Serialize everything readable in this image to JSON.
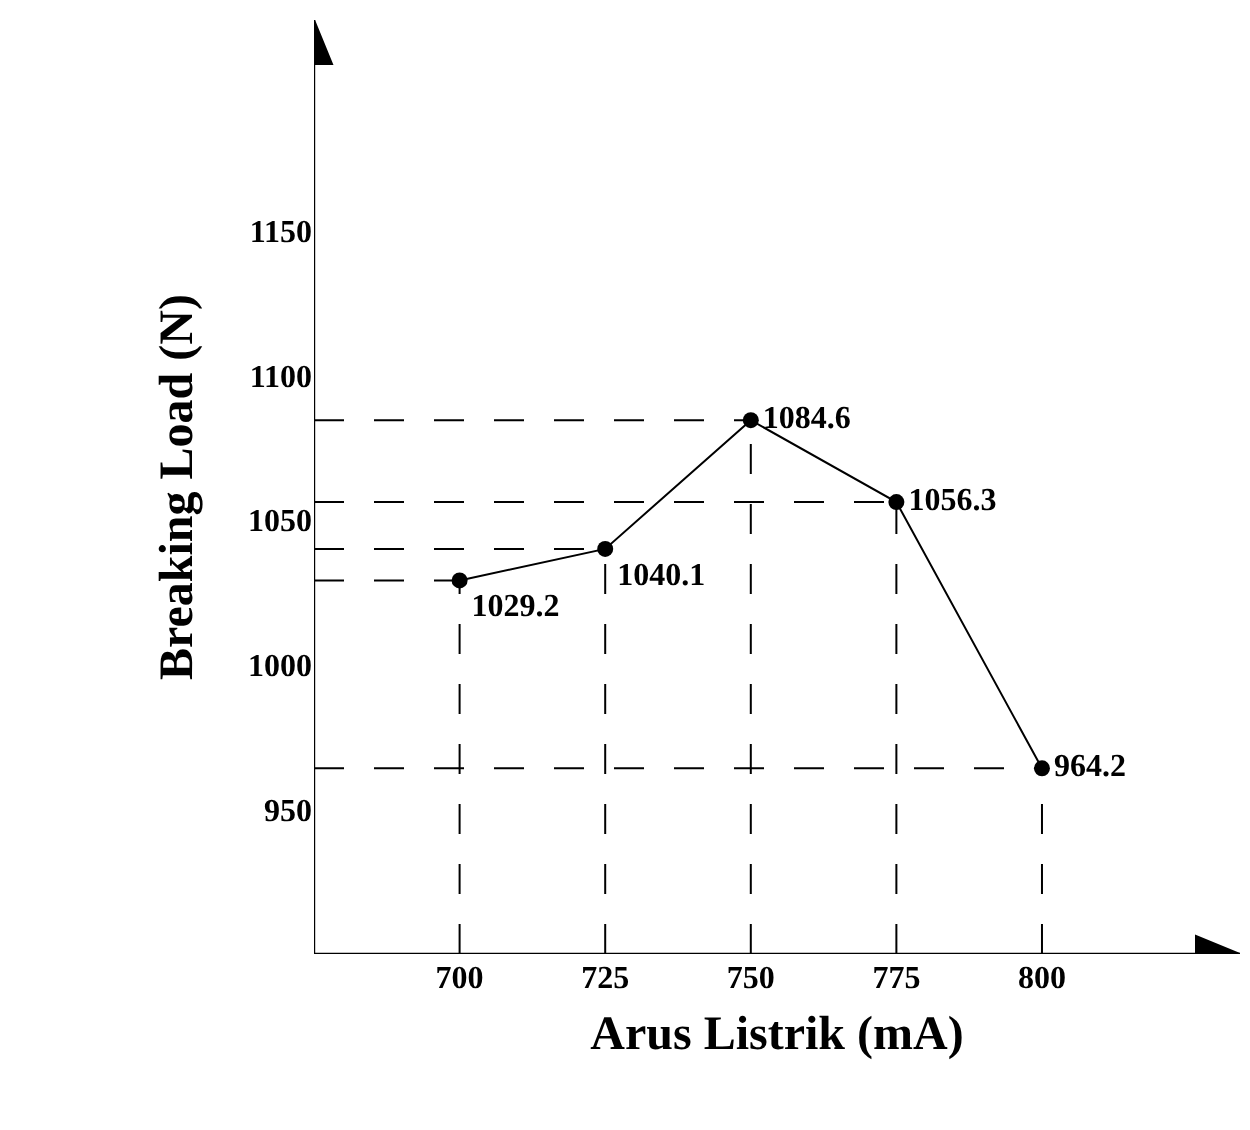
{
  "chart_data": {
    "type": "line",
    "xlabel": "Arus Listrik (mA)",
    "ylabel": "Breaking Load (N)",
    "x": [
      700,
      725,
      750,
      775,
      800
    ],
    "values": [
      1029.2,
      1040.1,
      1084.6,
      1056.3,
      964.2
    ],
    "color": "#000000",
    "xlim": [
      675,
      834
    ],
    "ylim": [
      900,
      1223
    ],
    "xticks": [
      700,
      725,
      750,
      775,
      800
    ],
    "yticks": [
      950,
      1000,
      1050,
      1100,
      1150
    ],
    "data_labels": true,
    "marker": "circle",
    "line_style": "solid",
    "grid": false,
    "legend": false
  }
}
